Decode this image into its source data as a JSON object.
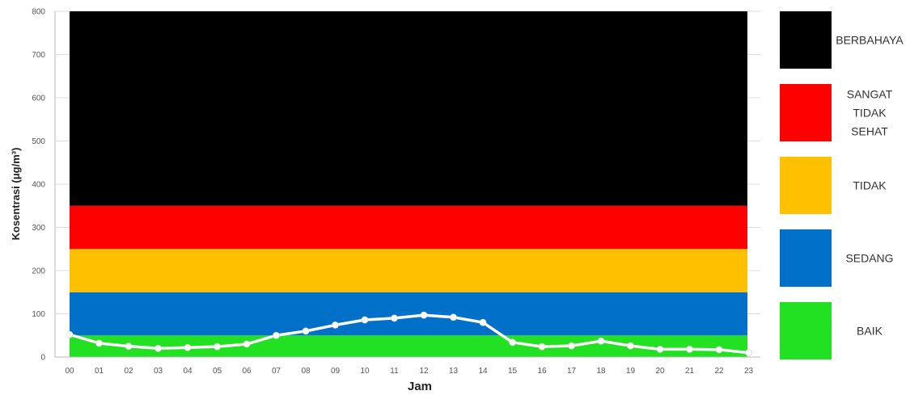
{
  "chart_data": {
    "type": "line",
    "xlabel": "Jam",
    "ylabel": "Kosentrasi (μg/m³)",
    "ylim": [
      0,
      800
    ],
    "yticks": [
      0,
      100,
      200,
      300,
      400,
      500,
      600,
      700,
      800
    ],
    "categories": [
      "00",
      "01",
      "02",
      "03",
      "04",
      "05",
      "06",
      "07",
      "08",
      "09",
      "10",
      "11",
      "12",
      "13",
      "14",
      "15",
      "16",
      "17",
      "18",
      "19",
      "20",
      "21",
      "22",
      "23"
    ],
    "series": [
      {
        "values": [
          52,
          32,
          25,
          20,
          22,
          24,
          30,
          50,
          60,
          74,
          86,
          90,
          97,
          92,
          80,
          34,
          24,
          26,
          37,
          26,
          18,
          18,
          17,
          10
        ],
        "color": "#ffffff"
      }
    ],
    "bands": [
      {
        "from": 0,
        "to": 50,
        "color": "#22e022"
      },
      {
        "from": 50,
        "to": 150,
        "color": "#0070c8"
      },
      {
        "from": 150,
        "to": 250,
        "color": "#ffc000"
      },
      {
        "from": 250,
        "to": 350,
        "color": "#ff0000"
      },
      {
        "from": 350,
        "to": 800,
        "color": "#000000"
      }
    ],
    "grid": true,
    "legend": {
      "placement": "right",
      "items": [
        {
          "lines": [
            "BERBAHAYA"
          ],
          "color": "#000000"
        },
        {
          "lines": [
            "SANGAT",
            "TIDAK",
            "SEHAT"
          ],
          "color": "#ff0000"
        },
        {
          "lines": [
            "TIDAK"
          ],
          "color": "#ffc000"
        },
        {
          "lines": [
            "SEDANG"
          ],
          "color": "#0070c8"
        },
        {
          "lines": [
            "BAIK"
          ],
          "color": "#22e022"
        }
      ]
    }
  }
}
